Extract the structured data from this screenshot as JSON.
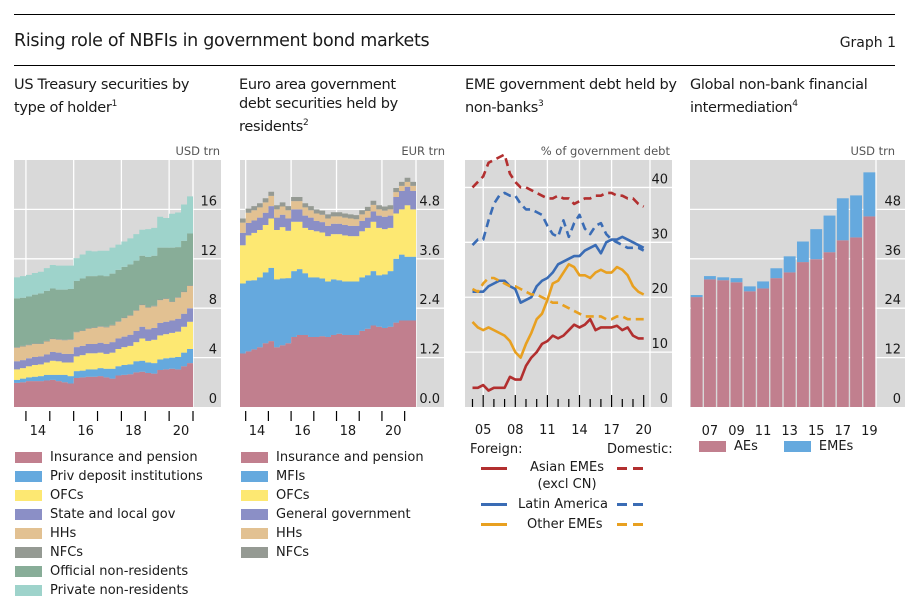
{
  "header": {
    "title": "Rising role of NBFIs in government bond markets",
    "graph_label": "Graph 1"
  },
  "chart_data": [
    {
      "id": "us",
      "type": "area",
      "title": "US Treasury securities by type of holder",
      "footnote": "1",
      "unit": "USD trn",
      "ylim": [
        0,
        20
      ],
      "yticks": [
        "0",
        "4",
        "8",
        "12",
        "16"
      ],
      "ytick_values": [
        0,
        4,
        8,
        12,
        16
      ],
      "xticks": [
        "14",
        "16",
        "18",
        "20"
      ],
      "x_start": 2013.5,
      "x_end": 2021.0,
      "frequency": "quarterly",
      "series": [
        {
          "name": "Insurance and pension",
          "color": "#c17f8e",
          "values": [
            1.95,
            2.0,
            2.1,
            2.1,
            2.1,
            2.15,
            2.2,
            2.1,
            2.0,
            1.9,
            2.35,
            2.4,
            2.45,
            2.45,
            2.5,
            2.4,
            2.3,
            2.55,
            2.6,
            2.65,
            2.8,
            2.85,
            2.75,
            2.7,
            3.0,
            3.05,
            3.1,
            3.05,
            3.3,
            3.55
          ]
        },
        {
          "name": "Priv deposit institutions",
          "color": "#65a9de",
          "values": [
            0.25,
            0.3,
            0.3,
            0.35,
            0.4,
            0.45,
            0.4,
            0.5,
            0.6,
            0.6,
            0.55,
            0.55,
            0.6,
            0.6,
            0.65,
            0.7,
            0.8,
            0.75,
            0.8,
            0.8,
            0.9,
            0.9,
            0.85,
            0.85,
            0.85,
            0.9,
            0.9,
            1.0,
            1.1,
            1.15
          ]
        },
        {
          "name": "OFCs",
          "color": "#fde872",
          "values": [
            0.85,
            0.85,
            0.9,
            0.95,
            0.95,
            1.0,
            1.15,
            1.1,
            1.0,
            1.1,
            1.2,
            1.25,
            1.3,
            1.3,
            1.25,
            1.2,
            1.3,
            1.4,
            1.45,
            1.5,
            1.55,
            1.8,
            1.75,
            1.9,
            1.95,
            1.95,
            2.0,
            2.05,
            2.1,
            2.2
          ]
        },
        {
          "name": "State and local gov",
          "color": "#8b8fc6",
          "values": [
            0.65,
            0.65,
            0.65,
            0.65,
            0.65,
            0.65,
            0.7,
            0.7,
            0.7,
            0.7,
            0.75,
            0.75,
            0.75,
            0.75,
            0.8,
            0.8,
            0.85,
            0.85,
            0.85,
            0.9,
            0.9,
            0.95,
            0.95,
            0.95,
            1.0,
            1.0,
            1.0,
            1.05,
            1.05,
            1.1
          ]
        },
        {
          "name": "HHs",
          "color": "#e2c192",
          "values": [
            1.1,
            1.1,
            1.05,
            1.05,
            1.0,
            1.05,
            1.05,
            1.05,
            1.1,
            1.15,
            1.2,
            1.2,
            1.25,
            1.3,
            1.3,
            1.35,
            1.35,
            1.35,
            1.5,
            1.55,
            1.65,
            1.75,
            1.75,
            1.75,
            1.85,
            1.85,
            1.5,
            1.7,
            1.75,
            1.8
          ]
        },
        {
          "name": "NFCs",
          "color": "#959a93",
          "values": [
            0.05,
            0.05,
            0.05,
            0.05,
            0.05,
            0.05,
            0.05,
            0.05,
            0.05,
            0.05,
            0.05,
            0.05,
            0.05,
            0.05,
            0.05,
            0.05,
            0.05,
            0.05,
            0.05,
            0.05,
            0.05,
            0.05,
            0.05,
            0.05,
            0.05,
            0.05,
            0.05,
            0.05,
            0.05,
            0.05
          ]
        },
        {
          "name": "Official non-residents",
          "color": "#88ad98",
          "values": [
            3.95,
            3.9,
            3.9,
            3.95,
            4.05,
            4.05,
            4.05,
            4.0,
            4.05,
            4.05,
            4.1,
            4.2,
            4.2,
            4.15,
            4.1,
            4.1,
            4.15,
            4.15,
            4.1,
            4.1,
            4.0,
            3.95,
            4.05,
            4.05,
            4.2,
            4.1,
            4.35,
            4.05,
            4.1,
            4.2
          ]
        },
        {
          "name": "Private non-residents",
          "color": "#9ed3cb",
          "values": [
            1.7,
            1.75,
            1.75,
            1.75,
            1.75,
            1.85,
            1.9,
            1.95,
            1.95,
            1.9,
            1.85,
            1.95,
            2.05,
            2.0,
            2.0,
            2.05,
            2.1,
            2.05,
            2.05,
            2.1,
            2.15,
            2.1,
            2.25,
            2.25,
            2.5,
            2.4,
            2.75,
            2.8,
            2.95,
            3.0
          ]
        }
      ]
    },
    {
      "id": "ea",
      "type": "area",
      "title": "Euro area government debt securities held by residents",
      "footnote": "2",
      "unit": "EUR trn",
      "ylim": [
        0,
        6.0
      ],
      "yticks": [
        "0.0",
        "1.2",
        "2.4",
        "3.6",
        "4.8"
      ],
      "ytick_values": [
        0,
        1.2,
        2.4,
        3.6,
        4.8
      ],
      "xticks": [
        "14",
        "16",
        "18",
        "20"
      ],
      "x_start": 2013.25,
      "x_end": 2021.0,
      "frequency": "quarterly",
      "series": [
        {
          "name": "Insurance and pension",
          "color": "#c17f8e",
          "values": [
            1.3,
            1.35,
            1.4,
            1.45,
            1.55,
            1.6,
            1.45,
            1.5,
            1.55,
            1.7,
            1.75,
            1.75,
            1.7,
            1.7,
            1.72,
            1.7,
            1.75,
            1.78,
            1.75,
            1.75,
            1.75,
            1.85,
            1.9,
            1.98,
            1.95,
            1.92,
            1.95,
            2.05,
            2.1,
            2.1,
            2.1
          ]
        },
        {
          "name": "MFIs",
          "color": "#65a9de",
          "values": [
            1.7,
            1.72,
            1.68,
            1.7,
            1.72,
            1.78,
            1.65,
            1.62,
            1.58,
            1.6,
            1.6,
            1.5,
            1.45,
            1.45,
            1.4,
            1.35,
            1.35,
            1.3,
            1.3,
            1.3,
            1.3,
            1.3,
            1.3,
            1.32,
            1.25,
            1.3,
            1.35,
            1.55,
            1.6,
            1.55,
            1.55
          ]
        },
        {
          "name": "OFCs",
          "color": "#fde872",
          "values": [
            0.93,
            1.1,
            1.15,
            1.15,
            1.15,
            1.2,
            1.2,
            1.25,
            1.15,
            1.2,
            1.15,
            1.1,
            1.15,
            1.12,
            1.12,
            1.1,
            1.1,
            1.12,
            1.12,
            1.1,
            1.1,
            1.12,
            1.15,
            1.2,
            1.15,
            1.1,
            1.05,
            1.1,
            1.1,
            1.25,
            1.15
          ]
        },
        {
          "name": "General government",
          "color": "#8b8fc6",
          "values": [
            0.3,
            0.3,
            0.3,
            0.3,
            0.3,
            0.3,
            0.3,
            0.3,
            0.3,
            0.3,
            0.3,
            0.3,
            0.3,
            0.25,
            0.25,
            0.25,
            0.25,
            0.25,
            0.25,
            0.25,
            0.25,
            0.25,
            0.25,
            0.25,
            0.3,
            0.3,
            0.3,
            0.4,
            0.45,
            0.45,
            0.45
          ]
        },
        {
          "name": "HHs",
          "color": "#e2c192",
          "values": [
            0.25,
            0.25,
            0.25,
            0.25,
            0.25,
            0.25,
            0.2,
            0.2,
            0.2,
            0.2,
            0.2,
            0.2,
            0.18,
            0.18,
            0.18,
            0.18,
            0.18,
            0.18,
            0.18,
            0.18,
            0.16,
            0.16,
            0.16,
            0.16,
            0.15,
            0.15,
            0.15,
            0.12,
            0.12,
            0.12,
            0.12
          ]
        },
        {
          "name": "NFCs",
          "color": "#959a93",
          "values": [
            0.1,
            0.1,
            0.1,
            0.1,
            0.1,
            0.1,
            0.1,
            0.1,
            0.1,
            0.1,
            0.1,
            0.1,
            0.1,
            0.1,
            0.1,
            0.1,
            0.1,
            0.1,
            0.1,
            0.1,
            0.1,
            0.1,
            0.1,
            0.1,
            0.1,
            0.1,
            0.1,
            0.1,
            0.1,
            0.1,
            0.1
          ]
        }
      ]
    },
    {
      "id": "eme",
      "type": "line",
      "title": "EME government debt held by non-banks",
      "footnote": "3",
      "unit": "% of government debt",
      "ylim": [
        0,
        45
      ],
      "yticks": [
        "0",
        "10",
        "20",
        "30",
        "40"
      ],
      "ytick_values": [
        0,
        10,
        20,
        30,
        40
      ],
      "xticks": [
        "05",
        "08",
        "11",
        "14",
        "17",
        "20"
      ],
      "x_start": 2003.75,
      "x_end": 2020.25,
      "x": [
        2004.0,
        2004.5,
        2005.0,
        2005.5,
        2006.0,
        2006.5,
        2007.0,
        2007.5,
        2008.0,
        2008.5,
        2009.0,
        2009.5,
        2010.0,
        2010.5,
        2011.0,
        2011.5,
        2012.0,
        2012.5,
        2013.0,
        2013.5,
        2014.0,
        2014.5,
        2015.0,
        2015.5,
        2016.0,
        2016.5,
        2017.0,
        2017.5,
        2018.0,
        2018.5,
        2019.0,
        2019.5,
        2020.0
      ],
      "legend_headers": {
        "foreign": "Foreign:",
        "domestic": "Domestic:"
      },
      "series": [
        {
          "name": "Asian EMEs (excl CN)",
          "kind": "Foreign",
          "color": "#b22f2f",
          "dash": false,
          "values": [
            3.5,
            3.5,
            4.0,
            3.0,
            3.5,
            3.5,
            3.5,
            5.5,
            5.0,
            5.0,
            7.5,
            9.0,
            10.0,
            11.5,
            12.0,
            13.0,
            12.5,
            13.0,
            14.0,
            15.0,
            14.5,
            15.0,
            16.0,
            14.0,
            14.5,
            14.5,
            14.5,
            14.8,
            14.0,
            14.5,
            13.0,
            12.5,
            12.5
          ]
        },
        {
          "name": "Asian EMEs (excl CN)",
          "kind": "Domestic",
          "color": "#b22f2f",
          "dash": true,
          "values": [
            40.0,
            41.0,
            42.0,
            44.5,
            45.0,
            45.5,
            46.0,
            42.5,
            41.0,
            40.0,
            40.0,
            39.5,
            39.0,
            38.5,
            38.0,
            38.0,
            38.5,
            38.0,
            38.0,
            37.0,
            37.5,
            38.0,
            38.0,
            38.5,
            38.5,
            39.0,
            39.0,
            38.5,
            38.5,
            38.0,
            38.0,
            37.0,
            36.5
          ]
        },
        {
          "name": "Latin America",
          "kind": "Foreign",
          "color": "#3a6cb5",
          "dash": false,
          "values": [
            21.0,
            21.0,
            21.0,
            22.0,
            22.5,
            23.0,
            23.0,
            22.0,
            21.5,
            19.0,
            19.5,
            20.0,
            22.0,
            23.0,
            23.5,
            24.5,
            26.0,
            26.5,
            27.0,
            27.5,
            27.5,
            28.5,
            29.0,
            29.5,
            28.0,
            30.0,
            30.5,
            30.5,
            31.0,
            30.5,
            30.0,
            29.5,
            29.0
          ]
        },
        {
          "name": "Latin America",
          "kind": "Domestic",
          "color": "#3a6cb5",
          "dash": true,
          "values": [
            29.5,
            30.5,
            30.5,
            34.0,
            37.0,
            38.5,
            39.0,
            38.5,
            38.5,
            37.0,
            36.0,
            36.0,
            35.5,
            35.0,
            33.0,
            31.5,
            31.0,
            34.0,
            31.0,
            33.5,
            35.0,
            32.5,
            31.5,
            33.0,
            33.5,
            31.5,
            30.5,
            30.0,
            29.5,
            29.0,
            29.0,
            29.0,
            28.5
          ]
        },
        {
          "name": "Other EMEs",
          "kind": "Foreign",
          "color": "#e8a020",
          "dash": false,
          "values": [
            15.5,
            14.5,
            14.0,
            14.5,
            14.0,
            13.5,
            13.0,
            12.0,
            10.0,
            9.0,
            11.5,
            13.5,
            16.0,
            17.0,
            19.5,
            22.5,
            23.0,
            24.5,
            26.0,
            25.5,
            24.0,
            24.0,
            23.5,
            24.5,
            25.0,
            24.5,
            24.5,
            25.5,
            25.0,
            24.0,
            22.0,
            21.0,
            20.5
          ]
        },
        {
          "name": "Other EMEs",
          "kind": "Domestic",
          "color": "#e8a020",
          "dash": true,
          "values": [
            21.5,
            21.0,
            22.5,
            23.5,
            23.5,
            23.0,
            22.5,
            22.0,
            22.0,
            21.5,
            21.0,
            20.5,
            20.5,
            20.0,
            19.5,
            19.0,
            19.0,
            18.5,
            18.0,
            17.5,
            17.0,
            16.5,
            16.5,
            16.5,
            16.5,
            16.0,
            16.0,
            16.5,
            16.5,
            16.0,
            16.0,
            16.0,
            16.0
          ]
        }
      ],
      "legend_rows": [
        "Asian EMEs (excl CN)",
        "Latin America",
        "Other EMEs"
      ]
    },
    {
      "id": "nbfi",
      "type": "bar",
      "stacked": true,
      "title": "Global non-bank financial intermediation",
      "footnote": "4",
      "unit": "USD trn",
      "ylim": [
        0,
        60
      ],
      "yticks": [
        "0",
        "12",
        "24",
        "36",
        "48"
      ],
      "ytick_values": [
        0,
        12,
        24,
        36,
        48
      ],
      "categories": [
        "06",
        "07",
        "08",
        "09",
        "10",
        "11",
        "12",
        "13",
        "14",
        "15",
        "16",
        "17",
        "18",
        "19"
      ],
      "xticks": [
        "07",
        "09",
        "11",
        "13",
        "15",
        "17",
        "19"
      ],
      "series": [
        {
          "name": "AEs",
          "color": "#c17f8e",
          "values": [
            26.7,
            31.0,
            30.8,
            30.3,
            28.1,
            28.8,
            31.3,
            32.7,
            35.2,
            35.9,
            37.6,
            40.5,
            41.2,
            46.3
          ]
        },
        {
          "name": "EMEs",
          "color": "#65a9de",
          "values": [
            0.5,
            0.8,
            0.7,
            1.0,
            1.2,
            1.7,
            2.4,
            3.9,
            5.0,
            7.3,
            8.9,
            10.2,
            10.2,
            10.7
          ]
        }
      ]
    }
  ]
}
